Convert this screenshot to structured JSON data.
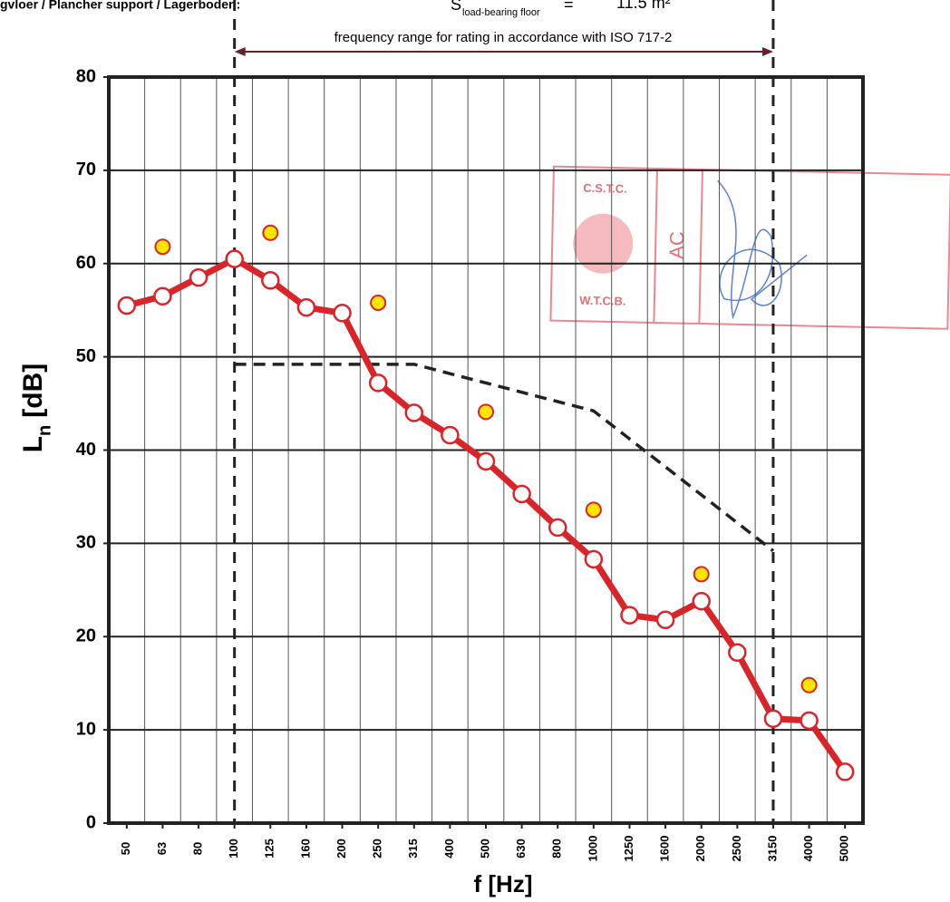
{
  "chart_data": {
    "type": "line",
    "header": "gvloer / Plancher support / Lagerboden:",
    "area_label": {
      "symbol": "S",
      "subscript": "load-bearing floor",
      "equals": "=",
      "value": "11.5 m²"
    },
    "range_annotation": "frequency range for rating in accordance with ISO 717-2",
    "rating_range": [
      "100",
      "3150"
    ],
    "x_label": "f [Hz]",
    "y_label": {
      "symbol": "L",
      "subscript": "n",
      "unit": "[dB]"
    },
    "stamp": {
      "top": "C.S.T.C.",
      "bottom": "W.T.C.B.",
      "initials": "AC"
    },
    "categories": [
      "50",
      "63",
      "80",
      "100",
      "125",
      "160",
      "200",
      "250",
      "315",
      "400",
      "500",
      "630",
      "800",
      "1000",
      "1250",
      "1600",
      "2000",
      "2500",
      "3150",
      "4000",
      "5000"
    ],
    "ylim": [
      0,
      80
    ],
    "yticks": [
      0,
      10,
      20,
      30,
      40,
      50,
      60,
      70,
      80
    ],
    "grid": true,
    "series": [
      {
        "style": "reference",
        "color": "#222222",
        "values": [
          null,
          null,
          null,
          49.2,
          49.2,
          49.2,
          49.2,
          49.2,
          49.2,
          48.2,
          47.2,
          46.2,
          45.2,
          44.2,
          41.2,
          38.2,
          35.2,
          32.2,
          29.2,
          null,
          null
        ]
      },
      {
        "style": "measured",
        "color": "#d9252a",
        "values": [
          55.5,
          56.5,
          58.5,
          60.5,
          58.2,
          55.3,
          54.7,
          47.2,
          44.0,
          41.6,
          38.8,
          35.3,
          31.7,
          28.3,
          22.3,
          21.8,
          23.8,
          18.3,
          11.2,
          11.0,
          5.5
        ]
      },
      {
        "style": "octave",
        "color": "#ffe600",
        "values": [
          null,
          61.8,
          null,
          null,
          63.3,
          null,
          null,
          55.8,
          null,
          null,
          44.1,
          null,
          null,
          33.6,
          null,
          null,
          26.7,
          null,
          null,
          14.8,
          null
        ]
      }
    ]
  }
}
